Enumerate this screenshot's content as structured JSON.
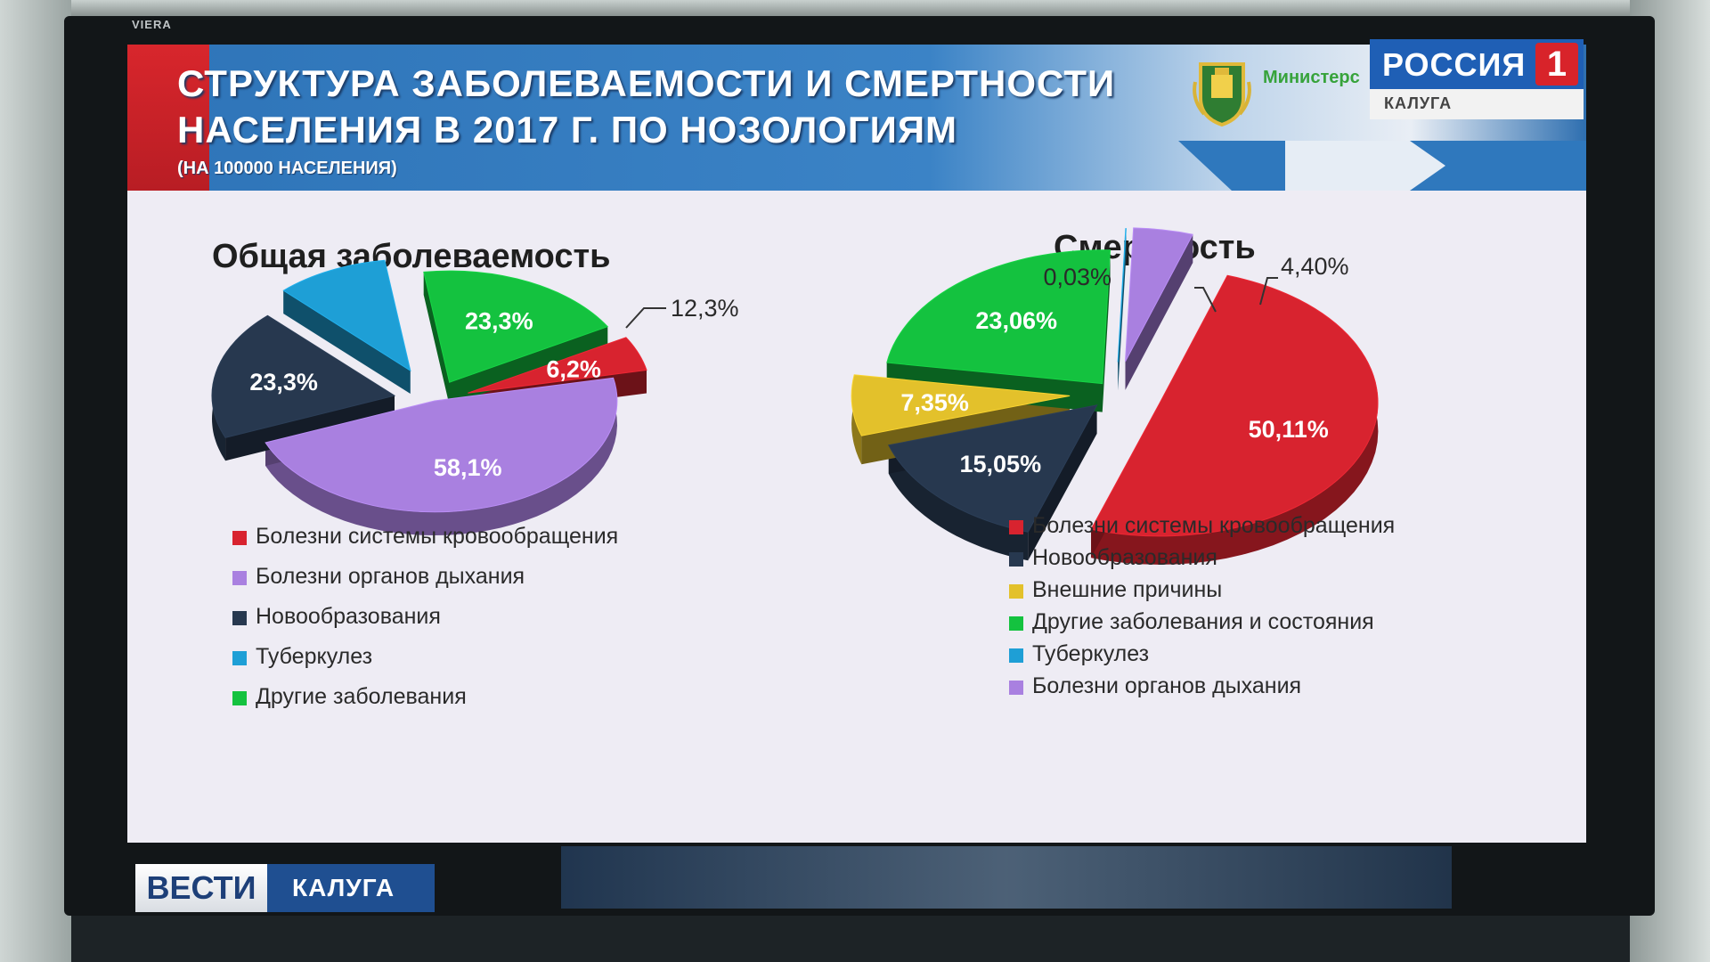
{
  "tv_brand": "VIERA",
  "slide": {
    "title_line1": "СТРУКТУРА ЗАБОЛЕВАЕМОСТИ И СМЕРТНОСТИ",
    "title_line2": "НАСЕЛЕНИЯ В 2017 Г. ПО НОЗОЛОГИЯМ",
    "subtitle": "(НА 100000 НАСЕЛЕНИЯ)",
    "ministry_text": "Министерс"
  },
  "channel": {
    "name": "РОССИЯ",
    "number": "1",
    "region": "КАЛУГА"
  },
  "news": {
    "brand": "ВЕСТИ",
    "region": "КАЛУГА"
  },
  "colors": {
    "circulatory": "#d8232f",
    "respiratory": "#a980e0",
    "neoplasms": "#27384f",
    "tuberculosis": "#1e9fd6",
    "other": "#14c23f",
    "external": "#e3c12b"
  },
  "chart_data": [
    {
      "type": "pie",
      "title": "Общая заболеваемость",
      "legend_position": "bottom",
      "slices": [
        {
          "label": "Болезни системы кровообращения",
          "value": 6.2,
          "display": "6,2%",
          "color_key": "circulatory"
        },
        {
          "label": "Болезни органов дыхания",
          "value": 58.1,
          "display": "58,1%",
          "color_key": "respiratory"
        },
        {
          "label": "Новообразования",
          "value": 23.3,
          "display": "23,3%",
          "color_key": "neoplasms"
        },
        {
          "label": "Туберкулез",
          "value": 12.3,
          "display": "12,3%",
          "color_key": "tuberculosis"
        },
        {
          "label": "Другие заболевания",
          "value": 23.3,
          "display": "23,3%",
          "color_key": "other"
        }
      ]
    },
    {
      "type": "pie",
      "title": "Смертность",
      "legend_position": "bottom",
      "slices": [
        {
          "label": "Болезни системы кровообращения",
          "value": 50.11,
          "display": "50,11%",
          "color_key": "circulatory"
        },
        {
          "label": "Новообразования",
          "value": 15.05,
          "display": "15,05%",
          "color_key": "neoplasms"
        },
        {
          "label": "Внешние причины",
          "value": 7.35,
          "display": "7,35%",
          "color_key": "external"
        },
        {
          "label": "Другие заболевания и состояния",
          "value": 23.06,
          "display": "23,06%",
          "color_key": "other"
        },
        {
          "label": "Туберкулез",
          "value": 0.03,
          "display": "0,03%",
          "color_key": "tuberculosis"
        },
        {
          "label": "Болезни органов дыхания",
          "value": 4.4,
          "display": "4,40%",
          "color_key": "respiratory"
        }
      ]
    }
  ]
}
